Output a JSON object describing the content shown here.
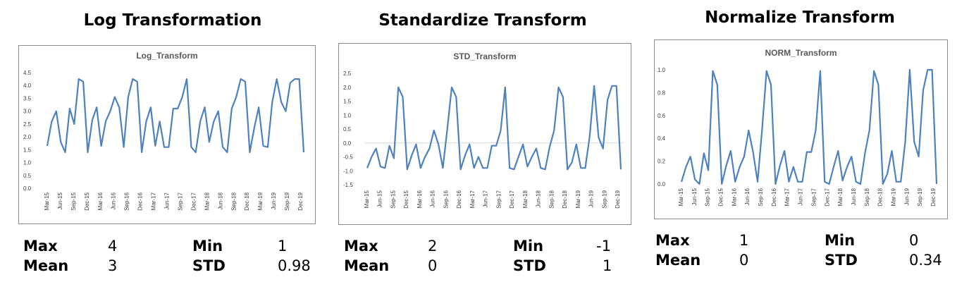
{
  "panels": [
    {
      "heading": "Log Transformation",
      "stats": {
        "max_label": "Max",
        "max_value": "4",
        "min_label": "Min",
        "min_value": "1",
        "mean_label": "Mean",
        "mean_value": "3",
        "std_label": "STD",
        "std_value": "0.98"
      }
    },
    {
      "heading": "Standardize Transform",
      "stats": {
        "max_label": "Max",
        "max_value": "2",
        "min_label": "Min",
        "min_value": "-1",
        "mean_label": "Mean",
        "mean_value": "0",
        "std_label": "STD",
        "std_value": "1"
      }
    },
    {
      "heading": "Normalize Transform",
      "stats": {
        "max_label": "Max",
        "max_value": "1",
        "min_label": "Min",
        "min_value": "0",
        "mean_label": "Mean",
        "mean_value": "0",
        "std_label": "STD",
        "std_value": "0.34"
      }
    }
  ],
  "chart_data": [
    {
      "type": "line",
      "title": "Log_Transform",
      "xlabel": "",
      "ylabel": "",
      "ylim": [
        0,
        4.5
      ],
      "yticks": [
        "0.0",
        "0.5",
        "1.0",
        "1.5",
        "2.0",
        "2.5",
        "3.0",
        "3.5",
        "4.0",
        "4.5"
      ],
      "ytick_values": [
        0,
        0.5,
        1,
        1.5,
        2,
        2.5,
        3,
        3.5,
        4,
        4.5
      ],
      "x_tick_labels": [
        "Mar-15",
        "Jun-15",
        "Sep-15",
        "Dec-15",
        "Mar-16",
        "Jun-16",
        "Sep-16",
        "Dec-16",
        "Mar-17",
        "Jun-17",
        "Sep-17",
        "Dec-17",
        "Mar-18",
        "Jun-18",
        "Sep-18",
        "Dec-18",
        "Mar-19",
        "Jun-19",
        "Sep-19",
        "Dec-19"
      ],
      "series_color": "#4f81bd",
      "zero_line": false,
      "series": [
        {
          "values": [
            1.65,
            2.6,
            3.0,
            1.8,
            1.4,
            3.1,
            2.5,
            4.25,
            4.15,
            1.4,
            2.65,
            3.15,
            1.65,
            2.6,
            3.0,
            3.55,
            3.15,
            1.6,
            3.55,
            4.25,
            4.15,
            1.4,
            2.6,
            3.15,
            1.65,
            2.6,
            1.6,
            1.6,
            3.1,
            3.1,
            3.55,
            4.25,
            1.6,
            1.4,
            2.6,
            3.15,
            1.8,
            2.6,
            3.0,
            1.6,
            1.4,
            3.1,
            3.55,
            4.25,
            4.15,
            1.4,
            2.35,
            3.15,
            1.65,
            1.6,
            3.35,
            4.25,
            3.35,
            3.0,
            4.1,
            4.25,
            4.25,
            1.4
          ]
        }
      ]
    },
    {
      "type": "line",
      "title": "STD_Transform",
      "xlabel": "",
      "ylabel": "",
      "ylim": [
        -1.5,
        2.5
      ],
      "yticks": [
        "-1.5",
        "-1.0",
        "-0.5",
        "0.0",
        "0.5",
        "1.0",
        "1.5",
        "2.0",
        "2.5"
      ],
      "ytick_values": [
        -1.5,
        -1,
        -0.5,
        0,
        0.5,
        1,
        1.5,
        2,
        2.5
      ],
      "x_tick_labels": [
        "Mar-15",
        "Jun-15",
        "Sep-15",
        "Dec-15",
        "Mar-16",
        "Jun-16",
        "Sep-16",
        "Dec-16",
        "Mar-17",
        "Jun-17",
        "Sep-17",
        "Dec-17",
        "Mar-18",
        "Jun-18",
        "Sep-18",
        "Dec-18",
        "Mar-19",
        "Jun-19",
        "Sep-19",
        "Dec-19"
      ],
      "series_color": "#4f81bd",
      "zero_line": true,
      "series": [
        {
          "values": [
            -0.9,
            -0.5,
            -0.2,
            -0.85,
            -0.9,
            -0.1,
            -0.55,
            2.0,
            1.65,
            -0.95,
            -0.45,
            -0.05,
            -0.9,
            -0.5,
            -0.2,
            0.45,
            -0.05,
            -0.9,
            0.5,
            2.0,
            1.65,
            -0.95,
            -0.45,
            -0.05,
            -0.9,
            -0.5,
            -0.9,
            -0.9,
            -0.1,
            -0.1,
            0.45,
            2.0,
            -0.9,
            -0.95,
            -0.5,
            -0.05,
            -0.85,
            -0.5,
            -0.2,
            -0.9,
            -0.95,
            -0.15,
            0.45,
            2.0,
            1.65,
            -0.95,
            -0.7,
            -0.05,
            -0.9,
            -0.9,
            0.25,
            2.05,
            0.2,
            -0.2,
            1.55,
            2.05,
            2.05,
            -0.95
          ]
        }
      ]
    },
    {
      "type": "line",
      "title": "NORM_Transform",
      "xlabel": "",
      "ylabel": "",
      "ylim": [
        0,
        1.0
      ],
      "yticks": [
        "0.0",
        "0.2",
        "0.4",
        "0.6",
        "0.8",
        "1.0"
      ],
      "ytick_values": [
        0,
        0.2,
        0.4,
        0.6,
        0.8,
        1.0
      ],
      "x_tick_labels": [
        "Mar-15",
        "Jun-15",
        "Sep-15",
        "Dec-15",
        "Mar-16",
        "Jun-16",
        "Sep-16",
        "Dec-16",
        "Mar-17",
        "Jun-17",
        "Sep-17",
        "Dec-17",
        "Mar-18",
        "Jun-18",
        "Sep-18",
        "Dec-18",
        "Mar-19",
        "Jun-19",
        "Sep-19",
        "Dec-19"
      ],
      "series_color": "#4f81bd",
      "zero_line": false,
      "series": [
        {
          "values": [
            0.02,
            0.15,
            0.24,
            0.04,
            0.0,
            0.27,
            0.12,
            0.99,
            0.87,
            0.0,
            0.16,
            0.29,
            0.02,
            0.15,
            0.24,
            0.47,
            0.28,
            0.02,
            0.47,
            0.99,
            0.87,
            0.0,
            0.16,
            0.29,
            0.02,
            0.15,
            0.02,
            0.02,
            0.28,
            0.28,
            0.47,
            0.99,
            0.02,
            0.0,
            0.15,
            0.29,
            0.03,
            0.15,
            0.24,
            0.02,
            0.0,
            0.27,
            0.47,
            0.99,
            0.87,
            0.0,
            0.09,
            0.29,
            0.02,
            0.02,
            0.37,
            1.0,
            0.37,
            0.24,
            0.82,
            1.0,
            1.0,
            0.0
          ]
        }
      ]
    }
  ]
}
